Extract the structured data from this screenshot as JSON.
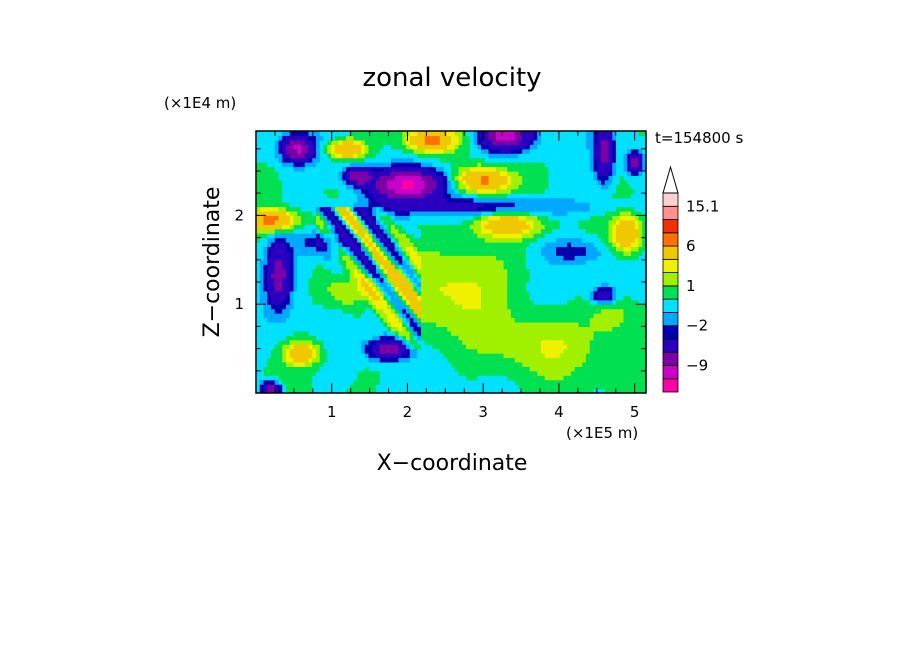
{
  "chart_data": {
    "type": "heatmap",
    "title": "zonal velocity",
    "xlabel": "X−coordinate",
    "ylabel": "Z−coordinate",
    "x_unit": "(×1E5 m)",
    "y_unit": "(×1E4 m)",
    "time_label": "t=154800 s",
    "xlim": [
      0,
      5.15
    ],
    "ylim": [
      0,
      2.95
    ],
    "x_ticks": [
      "1",
      "2",
      "3",
      "4",
      "5"
    ],
    "y_ticks": [
      "1",
      "2"
    ],
    "colorbar": {
      "tick_labels": [
        "15.1",
        "6",
        "1",
        "−2",
        "−9"
      ],
      "levels": [
        -15,
        -12,
        -9,
        -6,
        -3,
        -2,
        -1,
        0,
        1,
        2,
        3,
        6,
        9,
        12,
        15.1
      ],
      "colors": [
        "#ff00a8",
        "#c800c8",
        "#7c00a8",
        "#2a00c0",
        "#0000b0",
        "#00a8ff",
        "#00e0ff",
        "#00e050",
        "#a0f000",
        "#f0f000",
        "#f0c800",
        "#ff7000",
        "#f03000",
        "#ff9090",
        "#ffd0d0"
      ]
    }
  }
}
